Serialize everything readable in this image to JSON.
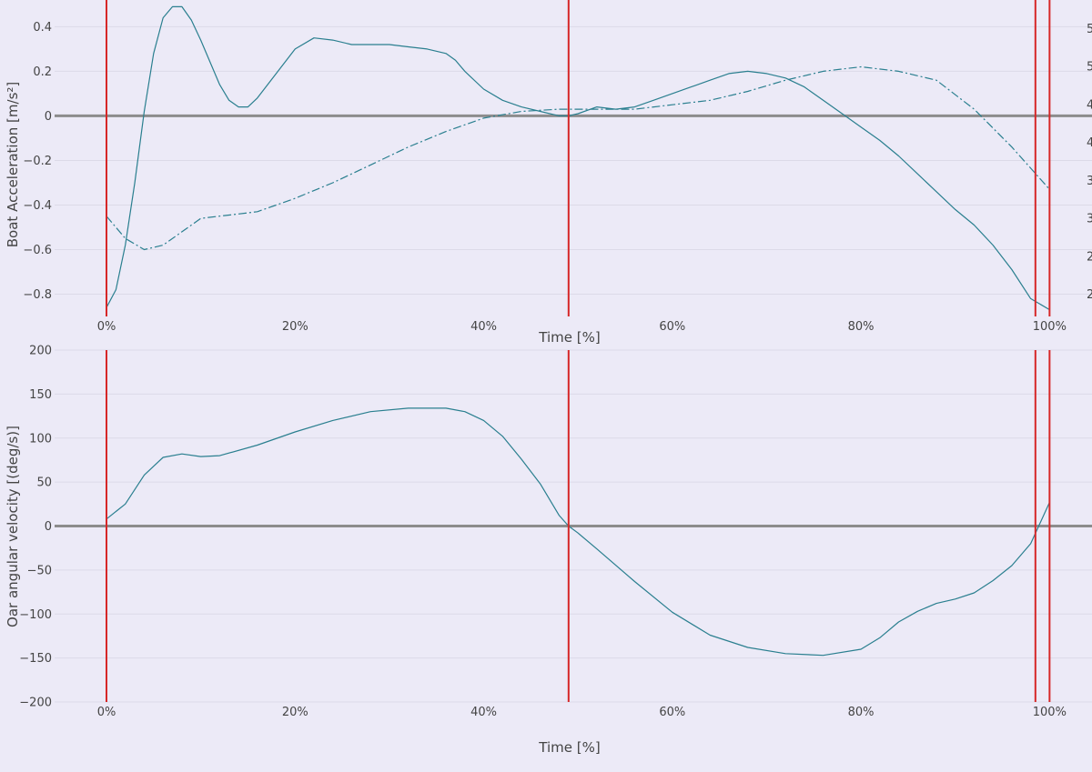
{
  "colors": {
    "background": "#eceaf7",
    "line": "#2a7f8f",
    "event_line": "#d62728",
    "zero_line": "#8c8c8c",
    "grid": "#dcdae8"
  },
  "chart_data": [
    {
      "type": "line",
      "xlabel": "Time [%]",
      "ylabel": "Boat Acceleration [m/s²]",
      "xlim": [
        -5.5,
        104.5
      ],
      "ylim": [
        -0.9,
        0.52
      ],
      "xticks": [
        0,
        20,
        40,
        60,
        80,
        100
      ],
      "xtick_labels": [
        "0%",
        "20%",
        "40%",
        "60%",
        "80%",
        "100%"
      ],
      "yticks": [
        0.4,
        0.2,
        0,
        -0.2,
        -0.4,
        -0.6,
        -0.8
      ],
      "ytick_labels": [
        "0.4",
        "0.2",
        "0",
        "−0.2",
        "−0.4",
        "−0.6",
        "−0.8"
      ],
      "right_axis_visible_ticks": [
        "5",
        "5",
        "4",
        "4",
        "3",
        "3",
        "2",
        "2"
      ],
      "grid": true,
      "zero_line": true,
      "event_lines_x": [
        0,
        49,
        98.5,
        100
      ],
      "series": [
        {
          "style": "solid",
          "axis": "left",
          "x": [
            0,
            1,
            2,
            3,
            4,
            5,
            6,
            7,
            8,
            9,
            10,
            11,
            12,
            13,
            14,
            15,
            16,
            18,
            20,
            22,
            24,
            26,
            28,
            30,
            32,
            34,
            36,
            37,
            38,
            40,
            42,
            44,
            46,
            48,
            49,
            50,
            52,
            54,
            56,
            58,
            60,
            62,
            64,
            66,
            68,
            70,
            72,
            74,
            76,
            78,
            80,
            82,
            84,
            86,
            88,
            90,
            92,
            94,
            96,
            98,
            100
          ],
          "y": [
            -0.86,
            -0.78,
            -0.58,
            -0.3,
            0.02,
            0.28,
            0.44,
            0.49,
            0.49,
            0.43,
            0.34,
            0.24,
            0.14,
            0.07,
            0.04,
            0.04,
            0.08,
            0.19,
            0.3,
            0.35,
            0.34,
            0.32,
            0.32,
            0.32,
            0.31,
            0.3,
            0.28,
            0.25,
            0.2,
            0.12,
            0.07,
            0.04,
            0.02,
            0.0,
            0.0,
            0.01,
            0.04,
            0.03,
            0.04,
            0.07,
            0.1,
            0.13,
            0.16,
            0.19,
            0.2,
            0.19,
            0.17,
            0.13,
            0.07,
            0.01,
            -0.05,
            -0.11,
            -0.18,
            -0.26,
            -0.34,
            -0.42,
            -0.49,
            -0.58,
            -0.69,
            -0.82,
            -0.87
          ]
        },
        {
          "style": "dashdot",
          "axis": "right",
          "x": [
            0,
            2,
            4,
            6,
            8,
            10,
            12,
            14,
            16,
            18,
            20,
            24,
            28,
            32,
            36,
            40,
            44,
            48,
            52,
            56,
            60,
            64,
            68,
            72,
            76,
            80,
            84,
            88,
            92,
            96,
            100
          ],
          "y_plot": [
            -0.45,
            -0.55,
            -0.6,
            -0.58,
            -0.52,
            -0.46,
            -0.45,
            -0.44,
            -0.43,
            -0.4,
            -0.37,
            -0.3,
            -0.22,
            -0.14,
            -0.07,
            -0.01,
            0.02,
            0.03,
            0.03,
            0.03,
            0.05,
            0.07,
            0.11,
            0.16,
            0.2,
            0.22,
            0.2,
            0.16,
            0.03,
            -0.14,
            -0.33
          ]
        }
      ]
    },
    {
      "type": "line",
      "xlabel": "Time [%]",
      "ylabel": "Oar angular velocity [(deg/s)]",
      "xlim": [
        -5.5,
        104.5
      ],
      "ylim": [
        -200,
        200
      ],
      "xticks": [
        0,
        20,
        40,
        60,
        80,
        100
      ],
      "xtick_labels": [
        "0%",
        "20%",
        "40%",
        "60%",
        "80%",
        "100%"
      ],
      "yticks": [
        200,
        150,
        100,
        50,
        0,
        -50,
        -100,
        -150,
        -200
      ],
      "ytick_labels": [
        "200",
        "150",
        "100",
        "50",
        "0",
        "−50",
        "−100",
        "−150",
        "−200"
      ],
      "grid": true,
      "zero_line": true,
      "event_lines_x": [
        0,
        49,
        98.5,
        100
      ],
      "series": [
        {
          "style": "solid",
          "x": [
            0,
            2,
            4,
            6,
            8,
            10,
            12,
            16,
            20,
            24,
            28,
            32,
            36,
            38,
            40,
            42,
            44,
            46,
            48,
            49,
            50,
            52,
            56,
            60,
            64,
            68,
            72,
            76,
            80,
            82,
            84,
            86,
            88,
            90,
            92,
            94,
            96,
            98,
            100
          ],
          "y": [
            8,
            25,
            58,
            78,
            82,
            79,
            80,
            92,
            107,
            120,
            130,
            134,
            134,
            130,
            120,
            102,
            76,
            48,
            12,
            0,
            -8,
            -26,
            -63,
            -98,
            -124,
            -138,
            -145,
            -147,
            -140,
            -127,
            -109,
            -97,
            -88,
            -83,
            -76,
            -62,
            -45,
            -20,
            27
          ]
        }
      ]
    }
  ]
}
